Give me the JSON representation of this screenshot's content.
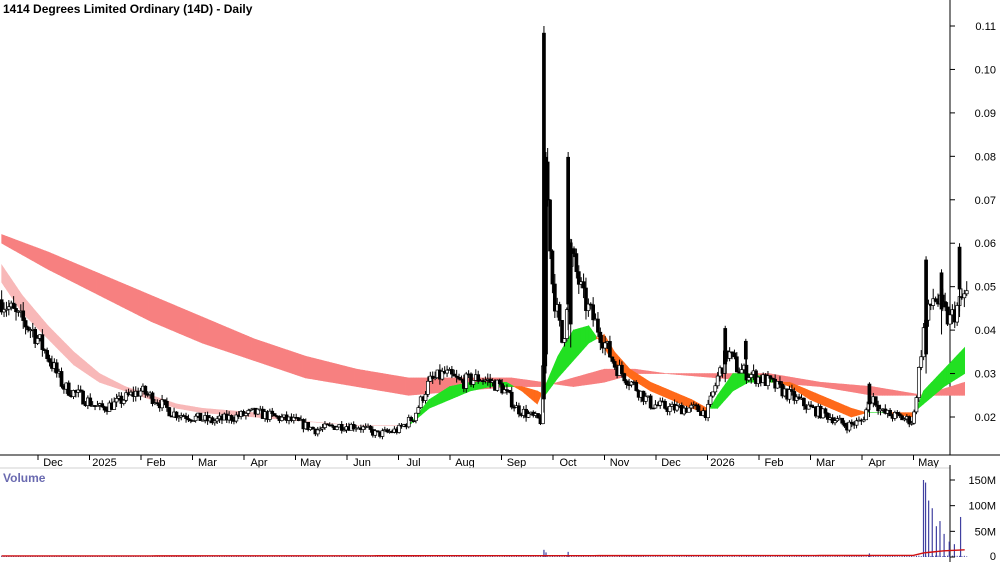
{
  "chart_data": [
    {
      "type": "candlestick",
      "title": "1414 Degrees Limited Ordinary (14D) - Daily",
      "yaxis_side": "right",
      "yticks": [
        "0.02",
        "0.03",
        "0.04",
        "0.05",
        "0.06",
        "0.07",
        "0.08",
        "0.09",
        "0.10",
        "0.11"
      ],
      "ylim": [
        0.012,
        0.117
      ],
      "months": [
        {
          "label": "Dec",
          "x": 0
        },
        {
          "label": "2025",
          "x": 1
        },
        {
          "label": "Feb",
          "x": 2
        },
        {
          "label": "Mar",
          "x": 3
        },
        {
          "label": "Apr",
          "x": 4
        },
        {
          "label": "May",
          "x": 5
        },
        {
          "label": "Jun",
          "x": 6
        },
        {
          "label": "Jul",
          "x": 7
        },
        {
          "label": "Aug",
          "x": 8
        },
        {
          "label": "Sep",
          "x": 9
        },
        {
          "label": "Oct",
          "x": 10
        },
        {
          "label": "Nov",
          "x": 11
        },
        {
          "label": "Dec",
          "x": 12
        },
        {
          "label": "2026",
          "x": 13
        },
        {
          "label": "Feb",
          "x": 14
        },
        {
          "label": "Mar",
          "x": 15
        },
        {
          "label": "Apr",
          "x": 16
        },
        {
          "label": "May",
          "x": 17
        }
      ],
      "price_anchors": [
        [
          -0.9,
          0.047
        ],
        [
          -0.6,
          0.043
        ],
        [
          -0.3,
          0.04
        ],
        [
          0.0,
          0.034
        ],
        [
          0.3,
          0.027
        ],
        [
          0.6,
          0.025
        ],
        [
          1.0,
          0.022
        ],
        [
          1.3,
          0.023
        ],
        [
          1.6,
          0.025
        ],
        [
          1.8,
          0.026
        ],
        [
          2.1,
          0.024
        ],
        [
          2.4,
          0.021
        ],
        [
          2.8,
          0.02
        ],
        [
          3.2,
          0.019
        ],
        [
          3.6,
          0.02
        ],
        [
          4.0,
          0.021
        ],
        [
          4.4,
          0.02
        ],
        [
          4.8,
          0.019
        ],
        [
          5.2,
          0.017
        ],
        [
          5.6,
          0.018
        ],
        [
          6.0,
          0.018
        ],
        [
          6.4,
          0.016
        ],
        [
          6.8,
          0.017
        ],
        [
          7.1,
          0.02
        ],
        [
          7.4,
          0.028
        ],
        [
          7.7,
          0.03
        ],
        [
          8.0,
          0.028
        ],
        [
          8.4,
          0.029
        ],
        [
          8.8,
          0.027
        ],
        [
          9.1,
          0.022
        ],
        [
          9.4,
          0.02
        ],
        [
          9.6,
          0.019
        ],
        [
          9.65,
          0.08
        ],
        [
          9.8,
          0.05
        ],
        [
          10.0,
          0.036
        ],
        [
          10.15,
          0.058
        ],
        [
          10.4,
          0.047
        ],
        [
          10.7,
          0.04
        ],
        [
          11.0,
          0.032
        ],
        [
          11.4,
          0.027
        ],
        [
          11.7,
          0.023
        ],
        [
          12.1,
          0.022
        ],
        [
          12.5,
          0.022
        ],
        [
          12.8,
          0.021
        ],
        [
          13.0,
          0.029
        ],
        [
          13.2,
          0.035
        ],
        [
          13.4,
          0.031
        ],
        [
          13.6,
          0.03
        ],
        [
          14.0,
          0.028
        ],
        [
          14.4,
          0.025
        ],
        [
          14.8,
          0.022
        ],
        [
          15.2,
          0.02
        ],
        [
          15.5,
          0.018
        ],
        [
          15.8,
          0.019
        ],
        [
          16.0,
          0.025
        ],
        [
          16.2,
          0.021
        ],
        [
          16.5,
          0.02
        ],
        [
          16.8,
          0.019
        ],
        [
          17.0,
          0.04
        ],
        [
          17.2,
          0.048
        ],
        [
          17.5,
          0.042
        ],
        [
          17.8,
          0.048
        ]
      ],
      "spikes": [
        {
          "x": 9.63,
          "high": 0.11,
          "low": 0.021
        },
        {
          "x": 9.67,
          "high": 0.081,
          "low": 0.03
        },
        {
          "x": 10.1,
          "high": 0.081,
          "low": 0.04
        },
        {
          "x": 10.15,
          "high": 0.061,
          "low": 0.036
        },
        {
          "x": 13.15,
          "high": 0.041,
          "low": 0.028
        },
        {
          "x": 13.55,
          "high": 0.038,
          "low": 0.029
        },
        {
          "x": 15.95,
          "high": 0.028,
          "low": 0.02
        },
        {
          "x": 17.05,
          "high": 0.057,
          "low": 0.03
        },
        {
          "x": 17.35,
          "high": 0.054,
          "low": 0.039
        },
        {
          "x": 17.7,
          "high": 0.06,
          "low": 0.043
        }
      ],
      "short_guppy": [
        [
          7.0,
          0.018,
          0.018
        ],
        [
          7.4,
          0.024,
          0.022
        ],
        [
          7.8,
          0.027,
          0.024
        ],
        [
          8.2,
          0.028,
          0.026
        ],
        [
          8.6,
          0.028,
          0.027
        ],
        [
          8.9,
          0.028,
          0.027
        ],
        [
          9.2,
          0.026,
          0.027
        ],
        [
          9.5,
          0.023,
          0.026
        ],
        [
          9.65,
          0.027,
          0.025
        ],
        [
          9.9,
          0.034,
          0.029
        ],
        [
          10.2,
          0.04,
          0.033
        ],
        [
          10.5,
          0.041,
          0.037
        ],
        [
          10.8,
          0.036,
          0.039
        ],
        [
          11.0,
          0.032,
          0.035
        ],
        [
          11.3,
          0.029,
          0.031
        ],
        [
          11.7,
          0.026,
          0.028
        ],
        [
          12.1,
          0.024,
          0.026
        ],
        [
          12.5,
          0.022,
          0.024
        ],
        [
          12.8,
          0.021,
          0.022
        ],
        [
          13.0,
          0.025,
          0.022
        ],
        [
          13.3,
          0.03,
          0.026
        ],
        [
          13.6,
          0.03,
          0.028
        ],
        [
          14.0,
          0.029,
          0.028
        ],
        [
          14.4,
          0.027,
          0.028
        ],
        [
          14.8,
          0.024,
          0.026
        ],
        [
          15.2,
          0.022,
          0.024
        ],
        [
          15.6,
          0.02,
          0.022
        ],
        [
          15.9,
          0.021,
          0.021
        ],
        [
          16.3,
          0.021,
          0.021
        ],
        [
          16.8,
          0.02,
          0.021
        ],
        [
          17.0,
          0.026,
          0.023
        ],
        [
          17.4,
          0.031,
          0.027
        ],
        [
          17.8,
          0.036,
          0.03
        ]
      ],
      "long_guppy": [
        [
          -0.9,
          0.062,
          0.06
        ],
        [
          0.0,
          0.058,
          0.054
        ],
        [
          1.0,
          0.053,
          0.048
        ],
        [
          2.0,
          0.048,
          0.042
        ],
        [
          3.0,
          0.043,
          0.037
        ],
        [
          4.0,
          0.038,
          0.033
        ],
        [
          5.0,
          0.034,
          0.029
        ],
        [
          6.0,
          0.031,
          0.027
        ],
        [
          7.0,
          0.029,
          0.025
        ],
        [
          8.0,
          0.029,
          0.026
        ],
        [
          9.0,
          0.029,
          0.027
        ],
        [
          9.6,
          0.028,
          0.027
        ],
        [
          10.2,
          0.027,
          0.029
        ],
        [
          10.8,
          0.028,
          0.031
        ],
        [
          11.4,
          0.03,
          0.031
        ],
        [
          12.0,
          0.03,
          0.03
        ],
        [
          13.0,
          0.03,
          0.029
        ],
        [
          14.0,
          0.03,
          0.028
        ],
        [
          15.0,
          0.028,
          0.027
        ],
        [
          16.0,
          0.027,
          0.025
        ],
        [
          17.0,
          0.025,
          0.025
        ],
        [
          17.8,
          0.025,
          0.028
        ]
      ],
      "early_short_band": [
        [
          -0.9,
          0.055,
          0.051
        ],
        [
          -0.5,
          0.048,
          0.044
        ],
        [
          0.0,
          0.041,
          0.038
        ],
        [
          0.5,
          0.035,
          0.032
        ],
        [
          1.0,
          0.03,
          0.028
        ],
        [
          1.5,
          0.027,
          0.026
        ],
        [
          2.0,
          0.025,
          0.024
        ],
        [
          2.5,
          0.023,
          0.022
        ],
        [
          3.0,
          0.022,
          0.021
        ],
        [
          4.0,
          0.021,
          0.02
        ],
        [
          5.0,
          0.019,
          0.019
        ],
        [
          6.0,
          0.018,
          0.018
        ],
        [
          7.0,
          0.018,
          0.018
        ]
      ]
    },
    {
      "type": "bar",
      "title": "Volume",
      "yticks": [
        "0",
        "50M",
        "100M",
        "150M"
      ],
      "ylim": [
        0,
        160
      ],
      "base_volume": 2,
      "volume_spikes": [
        {
          "x": 9.63,
          "value": 14
        },
        {
          "x": 9.67,
          "value": 9
        },
        {
          "x": 10.1,
          "value": 10
        },
        {
          "x": 15.95,
          "value": 7
        },
        {
          "x": 17.0,
          "value": 150
        },
        {
          "x": 17.04,
          "value": 145
        },
        {
          "x": 17.1,
          "value": 110
        },
        {
          "x": 17.17,
          "value": 95
        },
        {
          "x": 17.25,
          "value": 60
        },
        {
          "x": 17.32,
          "value": 70
        },
        {
          "x": 17.4,
          "value": 45
        },
        {
          "x": 17.5,
          "value": 30
        },
        {
          "x": 17.6,
          "value": 25
        },
        {
          "x": 17.72,
          "value": 78
        }
      ],
      "volume_ma": [
        [
          -0.9,
          2
        ],
        [
          16.8,
          3
        ],
        [
          17.0,
          8
        ],
        [
          17.4,
          12
        ],
        [
          17.8,
          14
        ]
      ]
    }
  ]
}
